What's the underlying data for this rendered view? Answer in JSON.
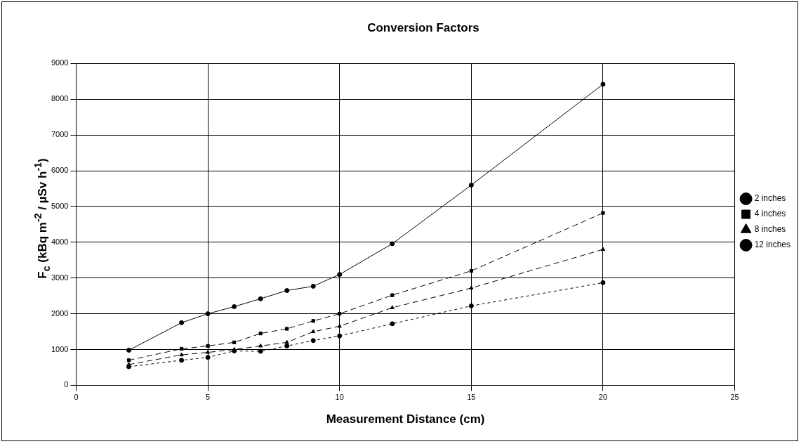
{
  "chart_data": {
    "type": "line",
    "title": "Conversion Factors",
    "xlabel": "Measurement Distance (cm)",
    "ylabel": "F$_{c}$ (kBq m$^{-2}$ / µSv h$^{-1}$)",
    "x": [
      2,
      4,
      5,
      6,
      7,
      8,
      9,
      10,
      12,
      15,
      20
    ],
    "series": [
      {
        "name": "2 inches",
        "color": "#000000",
        "marker": "circle",
        "line_style": "solid",
        "values": [
          980,
          1750,
          2000,
          2200,
          2420,
          2650,
          2770,
          3100,
          3960,
          5600,
          8420
        ]
      },
      {
        "name": "4 inches",
        "color": "#000000",
        "marker": "square",
        "line_style": "dashed",
        "values": [
          700,
          1020,
          1100,
          1200,
          1450,
          1580,
          1800,
          2000,
          2520,
          3200,
          4820
        ]
      },
      {
        "name": "8 inches",
        "color": "#000000",
        "marker": "triangle",
        "line_style": "dashed",
        "values": [
          580,
          850,
          920,
          1000,
          1100,
          1200,
          1500,
          1650,
          2170,
          2720,
          3800
        ]
      },
      {
        "name": "12 inches",
        "color": "#000000",
        "marker": "circle",
        "line_style": "dotted",
        "values": [
          520,
          700,
          780,
          960,
          950,
          1100,
          1250,
          1380,
          1720,
          2220,
          2870
        ]
      }
    ],
    "xlim": [
      0,
      25
    ],
    "xticks": [
      0,
      5,
      10,
      15,
      20,
      25
    ],
    "ylim": [
      0,
      9000
    ],
    "yticks": [
      0,
      1000,
      2000,
      3000,
      4000,
      5000,
      6000,
      7000,
      8000,
      9000
    ],
    "grid": true,
    "legend": "right"
  }
}
